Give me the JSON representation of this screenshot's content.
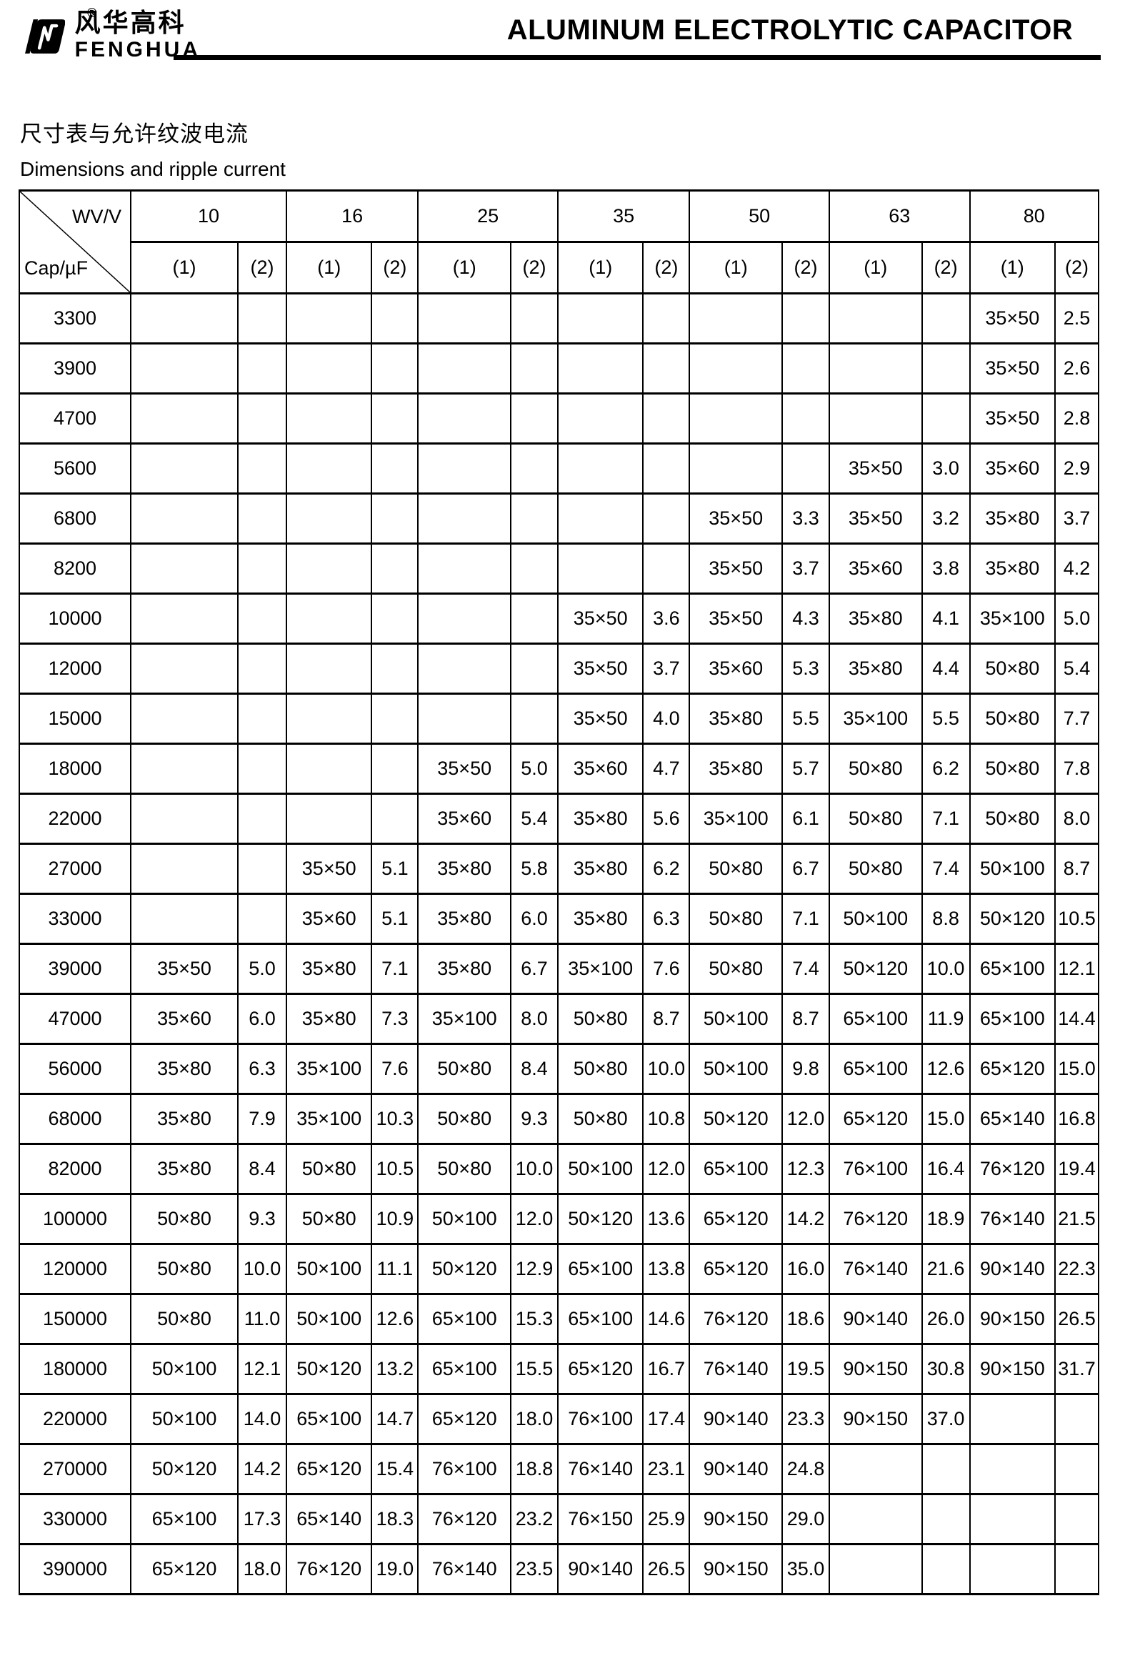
{
  "header": {
    "brand_cn": "风华高科",
    "brand_en": "FENGHUA",
    "registered_mark": "®",
    "title": "ALUMINUM ELECTROLYTIC CAPACITOR"
  },
  "section": {
    "title_cn": "尺寸表与允许纹波电流",
    "title_en": "Dimensions and ripple current"
  },
  "table": {
    "corner_top": "WV/V",
    "corner_bottom": "Cap/µF",
    "voltages": [
      "10",
      "16",
      "25",
      "35",
      "50",
      "63",
      "80"
    ],
    "sub_headers": [
      "(1)",
      "(2)"
    ],
    "rows": [
      {
        "cap": "3300",
        "cells": [
          "",
          "",
          "",
          "",
          "",
          "",
          "",
          "",
          "",
          "",
          "",
          "",
          "35×50",
          "2.5"
        ]
      },
      {
        "cap": "3900",
        "cells": [
          "",
          "",
          "",
          "",
          "",
          "",
          "",
          "",
          "",
          "",
          "",
          "",
          "35×50",
          "2.6"
        ]
      },
      {
        "cap": "4700",
        "cells": [
          "",
          "",
          "",
          "",
          "",
          "",
          "",
          "",
          "",
          "",
          "",
          "",
          "35×50",
          "2.8"
        ]
      },
      {
        "cap": "5600",
        "cells": [
          "",
          "",
          "",
          "",
          "",
          "",
          "",
          "",
          "",
          "",
          "35×50",
          "3.0",
          "35×60",
          "2.9"
        ]
      },
      {
        "cap": "6800",
        "cells": [
          "",
          "",
          "",
          "",
          "",
          "",
          "",
          "",
          "35×50",
          "3.3",
          "35×50",
          "3.2",
          "35×80",
          "3.7"
        ]
      },
      {
        "cap": "8200",
        "cells": [
          "",
          "",
          "",
          "",
          "",
          "",
          "",
          "",
          "35×50",
          "3.7",
          "35×60",
          "3.8",
          "35×80",
          "4.2"
        ]
      },
      {
        "cap": "10000",
        "cells": [
          "",
          "",
          "",
          "",
          "",
          "",
          "35×50",
          "3.6",
          "35×50",
          "4.3",
          "35×80",
          "4.1",
          "35×100",
          "5.0"
        ]
      },
      {
        "cap": "12000",
        "cells": [
          "",
          "",
          "",
          "",
          "",
          "",
          "35×50",
          "3.7",
          "35×60",
          "5.3",
          "35×80",
          "4.4",
          "50×80",
          "5.4"
        ]
      },
      {
        "cap": "15000",
        "cells": [
          "",
          "",
          "",
          "",
          "",
          "",
          "35×50",
          "4.0",
          "35×80",
          "5.5",
          "35×100",
          "5.5",
          "50×80",
          "7.7"
        ]
      },
      {
        "cap": "18000",
        "cells": [
          "",
          "",
          "",
          "",
          "35×50",
          "5.0",
          "35×60",
          "4.7",
          "35×80",
          "5.7",
          "50×80",
          "6.2",
          "50×80",
          "7.8"
        ]
      },
      {
        "cap": "22000",
        "cells": [
          "",
          "",
          "",
          "",
          "35×60",
          "5.4",
          "35×80",
          "5.6",
          "35×100",
          "6.1",
          "50×80",
          "7.1",
          "50×80",
          "8.0"
        ]
      },
      {
        "cap": "27000",
        "cells": [
          "",
          "",
          "35×50",
          "5.1",
          "35×80",
          "5.8",
          "35×80",
          "6.2",
          "50×80",
          "6.7",
          "50×80",
          "7.4",
          "50×100",
          "8.7"
        ]
      },
      {
        "cap": "33000",
        "cells": [
          "",
          "",
          "35×60",
          "5.1",
          "35×80",
          "6.0",
          "35×80",
          "6.3",
          "50×80",
          "7.1",
          "50×100",
          "8.8",
          "50×120",
          "10.5"
        ]
      },
      {
        "cap": "39000",
        "cells": [
          "35×50",
          "5.0",
          "35×80",
          "7.1",
          "35×80",
          "6.7",
          "35×100",
          "7.6",
          "50×80",
          "7.4",
          "50×120",
          "10.0",
          "65×100",
          "12.1"
        ]
      },
      {
        "cap": "47000",
        "cells": [
          "35×60",
          "6.0",
          "35×80",
          "7.3",
          "35×100",
          "8.0",
          "50×80",
          "8.7",
          "50×100",
          "8.7",
          "65×100",
          "11.9",
          "65×100",
          "14.4"
        ]
      },
      {
        "cap": "56000",
        "cells": [
          "35×80",
          "6.3",
          "35×100",
          "7.6",
          "50×80",
          "8.4",
          "50×80",
          "10.0",
          "50×100",
          "9.8",
          "65×100",
          "12.6",
          "65×120",
          "15.0"
        ]
      },
      {
        "cap": "68000",
        "cells": [
          "35×80",
          "7.9",
          "35×100",
          "10.3",
          "50×80",
          "9.3",
          "50×80",
          "10.8",
          "50×120",
          "12.0",
          "65×120",
          "15.0",
          "65×140",
          "16.8"
        ]
      },
      {
        "cap": "82000",
        "cells": [
          "35×80",
          "8.4",
          "50×80",
          "10.5",
          "50×80",
          "10.0",
          "50×100",
          "12.0",
          "65×100",
          "12.3",
          "76×100",
          "16.4",
          "76×120",
          "19.4"
        ]
      },
      {
        "cap": "100000",
        "cells": [
          "50×80",
          "9.3",
          "50×80",
          "10.9",
          "50×100",
          "12.0",
          "50×120",
          "13.6",
          "65×120",
          "14.2",
          "76×120",
          "18.9",
          "76×140",
          "21.5"
        ]
      },
      {
        "cap": "120000",
        "cells": [
          "50×80",
          "10.0",
          "50×100",
          "11.1",
          "50×120",
          "12.9",
          "65×100",
          "13.8",
          "65×120",
          "16.0",
          "76×140",
          "21.6",
          "90×140",
          "22.3"
        ]
      },
      {
        "cap": "150000",
        "cells": [
          "50×80",
          "11.0",
          "50×100",
          "12.6",
          "65×100",
          "15.3",
          "65×100",
          "14.6",
          "76×120",
          "18.6",
          "90×140",
          "26.0",
          "90×150",
          "26.5"
        ]
      },
      {
        "cap": "180000",
        "cells": [
          "50×100",
          "12.1",
          "50×120",
          "13.2",
          "65×100",
          "15.5",
          "65×120",
          "16.7",
          "76×140",
          "19.5",
          "90×150",
          "30.8",
          "90×150",
          "31.7"
        ]
      },
      {
        "cap": "220000",
        "cells": [
          "50×100",
          "14.0",
          "65×100",
          "14.7",
          "65×120",
          "18.0",
          "76×100",
          "17.4",
          "90×140",
          "23.3",
          "90×150",
          "37.0",
          "",
          ""
        ]
      },
      {
        "cap": "270000",
        "cells": [
          "50×120",
          "14.2",
          "65×120",
          "15.4",
          "76×100",
          "18.8",
          "76×140",
          "23.1",
          "90×140",
          "24.8",
          "",
          "",
          "",
          ""
        ]
      },
      {
        "cap": "330000",
        "cells": [
          "65×100",
          "17.3",
          "65×140",
          "18.3",
          "76×120",
          "23.2",
          "76×150",
          "25.9",
          "90×150",
          "29.0",
          "",
          "",
          "",
          ""
        ]
      },
      {
        "cap": "390000",
        "cells": [
          "65×120",
          "18.0",
          "76×120",
          "19.0",
          "76×140",
          "23.5",
          "90×140",
          "26.5",
          "90×150",
          "35.0",
          "",
          "",
          "",
          ""
        ]
      }
    ]
  }
}
